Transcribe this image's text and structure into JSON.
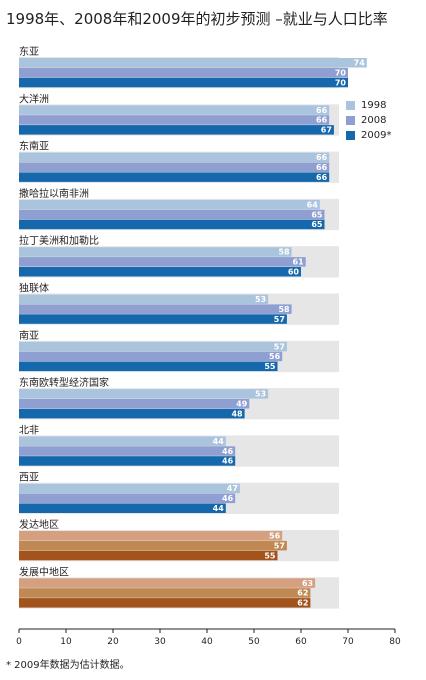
{
  "title": "1998年、2008年和2009年的初步预测 –就业与人口比率",
  "footnote": "* 2009年数据为估计数据。",
  "chart_data": {
    "type": "bar",
    "orientation": "horizontal",
    "title": "1998年、2008年和2009年的初步预测 –就业与人口比率",
    "xlim": [
      0,
      80
    ],
    "xticks": [
      0,
      10,
      20,
      30,
      40,
      50,
      60,
      70,
      80
    ],
    "categories": [
      "东亚",
      "大洋洲",
      "东南亚",
      "撒哈拉以南非洲",
      "拉丁美洲和加勒比",
      "独联体",
      "南亚",
      "东南欧转型经济国家",
      "北非",
      "西亚",
      "发达地区",
      "发展中地区"
    ],
    "series": [
      {
        "name": "1998",
        "values": [
          74,
          66,
          66,
          64,
          58,
          53,
          57,
          53,
          44,
          47,
          56,
          63
        ]
      },
      {
        "name": "2008",
        "values": [
          70,
          66,
          66,
          65,
          61,
          58,
          56,
          49,
          46,
          46,
          57,
          62
        ]
      },
      {
        "name": "2009*",
        "values": [
          70,
          67,
          66,
          65,
          60,
          57,
          55,
          48,
          46,
          44,
          55,
          62
        ]
      }
    ],
    "legend": {
      "position": "right",
      "items": [
        "1998",
        "2008",
        "2009*"
      ]
    },
    "colors": {
      "regular": [
        "#a9c4dc",
        "#8f9fd2",
        "#1468ab"
      ],
      "aggregate": [
        "#d4a080",
        "#c08852",
        "#a3531c"
      ],
      "legend": [
        "#a9c4dc",
        "#8f9fd2",
        "#1468ab"
      ],
      "band": "#e6e6e6",
      "axis": "#231f20"
    },
    "aggregate_categories": [
      "发达地区",
      "发展中地区"
    ]
  }
}
